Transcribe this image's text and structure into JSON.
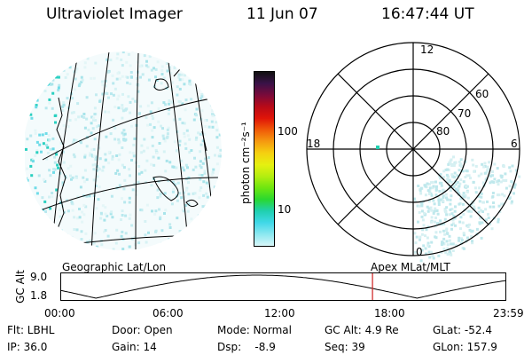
{
  "header": {
    "instrument": "Ultraviolet Imager",
    "date": "11 Jun 07",
    "time": "16:47:44 UT"
  },
  "colorbar": {
    "label": "photon cm⁻²s⁻¹",
    "ticks": [
      "100",
      "10"
    ],
    "colors": [
      "#101010",
      "#3a1248",
      "#7a0a3a",
      "#b80a18",
      "#e01408",
      "#f05a08",
      "#f59a10",
      "#f5d010",
      "#e6f010",
      "#b4ee10",
      "#6ee610",
      "#2ad830",
      "#20d0b0",
      "#40d8e8",
      "#8ce8f0",
      "#d8f6f8"
    ]
  },
  "polar_plot": {
    "mlt_labels": {
      "top": "12",
      "right": "6",
      "left": "18",
      "bottom": "0"
    },
    "lat_labels": [
      "60",
      "70",
      "80"
    ]
  },
  "altitude_plot": {
    "left_title": "Geographic Lat/Lon",
    "right_title": "Apex MLat/MLT",
    "ylabel": "GC Alt",
    "yticks": [
      "9.0",
      "1.8"
    ],
    "xticks": [
      "00:00",
      "06:00",
      "12:00",
      "18:00",
      "23:59"
    ],
    "current_time_fraction": 0.7,
    "marker_color": "#cc2020"
  },
  "info": {
    "flt": "Flt: LBHL",
    "ip": "IP: 36.0",
    "door": "Door: Open",
    "gain": "Gain: 14",
    "mode": "Mode: Normal",
    "dsp": "Dsp:    -8.9",
    "gc_alt": "GC Alt: 4.9 Re",
    "seq": "Seq: 39",
    "glat": "GLat: -52.4",
    "glon": "GLon: 157.9"
  }
}
